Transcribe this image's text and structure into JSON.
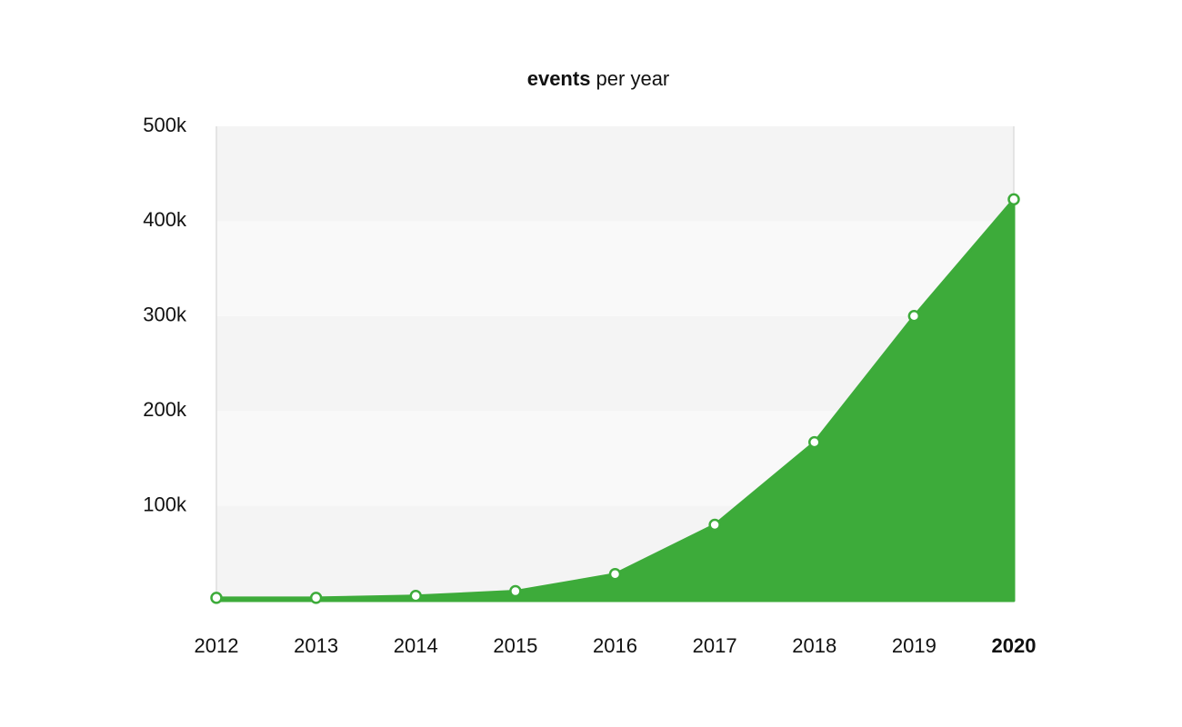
{
  "chart_data": {
    "type": "area",
    "title": "events per year",
    "categories": [
      "2012",
      "2013",
      "2014",
      "2015",
      "2016",
      "2017",
      "2018",
      "2019",
      "2020"
    ],
    "values": [
      3000,
      3000,
      5000,
      10000,
      28000,
      80000,
      167000,
      300000,
      423000
    ],
    "color": "#3dab3a",
    "ylim": [
      0,
      500000
    ],
    "yticks": [
      {
        "value": 100000,
        "label": "100k"
      },
      {
        "value": 200000,
        "label": "200k"
      },
      {
        "value": 300000,
        "label": "300k"
      },
      {
        "value": 400000,
        "label": "400k"
      },
      {
        "value": 500000,
        "label": "500k"
      }
    ],
    "grid": "bands",
    "bold_category": 8
  }
}
